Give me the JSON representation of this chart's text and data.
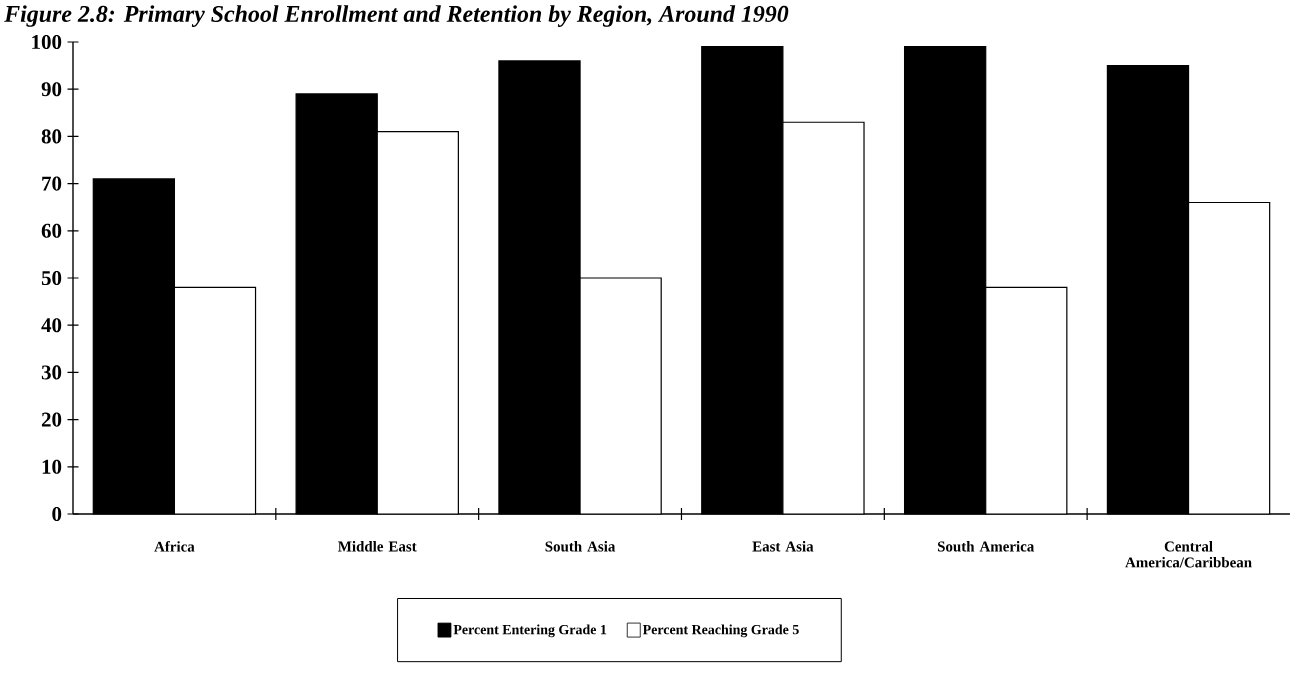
{
  "chart_data": {
    "type": "bar",
    "title": "Figure 2.8: Primary School Enrollment and Retention by Region, Around 1990",
    "categories": [
      "Africa",
      "Middle East",
      "South Asia",
      "East Asia",
      "South America",
      "Central America/Caribbean"
    ],
    "series": [
      {
        "name": "Percent Entering Grade 1",
        "color": "#000000",
        "values": [
          71,
          89,
          96,
          99,
          99,
          95
        ]
      },
      {
        "name": "Percent Reaching Grade 5",
        "color": "#ffffff",
        "values": [
          48,
          81,
          50,
          83,
          48,
          66
        ]
      }
    ],
    "ylim": [
      0,
      100
    ],
    "yticks": [
      0,
      10,
      20,
      30,
      40,
      50,
      60,
      70,
      80,
      90,
      100
    ],
    "legend": "bottom"
  }
}
